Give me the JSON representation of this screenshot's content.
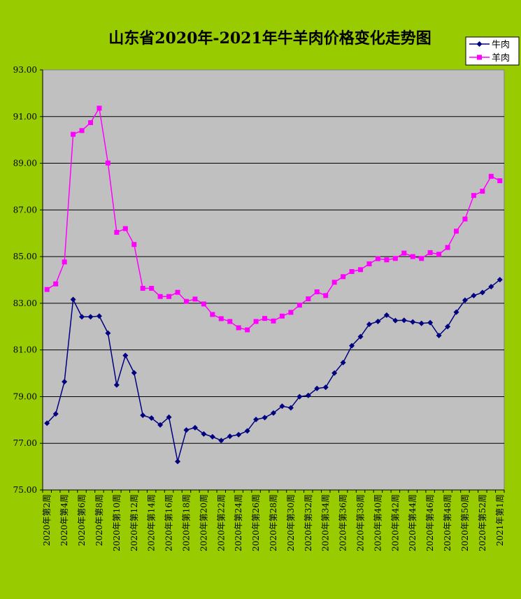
{
  "chart_data": {
    "type": "line",
    "title": "山东省2020年-2021年牛羊肉价格变化走势图",
    "xlabel": "",
    "ylabel": "",
    "ylim": [
      75,
      93
    ],
    "yticks": [
      75,
      77,
      79,
      81,
      83,
      85,
      87,
      89,
      91,
      93
    ],
    "ytick_labels": [
      "75.00",
      "77.00",
      "79.00",
      "81.00",
      "83.00",
      "85.00",
      "87.00",
      "89.00",
      "91.00",
      "93.00"
    ],
    "grid": true,
    "legend_position": "top-right",
    "x_tick_labels": [
      "2020年第2周",
      "2020年第4周",
      "2020年第6周",
      "2020年第8周",
      "2020年第10周",
      "2020年第12周",
      "2020年第14周",
      "2020年第16周",
      "2020年第18周",
      "2020年第20周",
      "2020年第22周",
      "2020年第24周",
      "2020年第26周",
      "2020年第28周",
      "2020年第30周",
      "2020年第32周",
      "2020年第34周",
      "2020年第36周",
      "2020年第38周",
      "2020年第40周",
      "2020年第42周",
      "2020年第44周",
      "2020年第46周",
      "2020年第48周",
      "2020年第50周",
      "2020年第52周",
      "2021年第1周"
    ],
    "series": [
      {
        "name": "牛肉",
        "color": "#000080",
        "marker": "diamond",
        "values": [
          77.86,
          78.26,
          79.64,
          83.16,
          82.42,
          82.42,
          82.45,
          81.72,
          79.5,
          80.76,
          80.02,
          78.2,
          78.08,
          77.79,
          78.12,
          76.22,
          77.57,
          77.67,
          77.4,
          77.28,
          77.12,
          77.3,
          77.37,
          77.53,
          78.02,
          78.1,
          78.3,
          78.59,
          78.52,
          79.0,
          79.05,
          79.35,
          79.4,
          80.01,
          80.46,
          81.18,
          81.57,
          82.1,
          82.22,
          82.49,
          82.26,
          82.27,
          82.2,
          82.14,
          82.17,
          81.62,
          82.0,
          82.62,
          83.13,
          83.33,
          83.46,
          83.71,
          84.01
        ]
      },
      {
        "name": "羊肉",
        "color": "#ff00ff",
        "marker": "square",
        "values": [
          83.59,
          83.83,
          84.77,
          90.24,
          90.4,
          90.74,
          91.36,
          89.01,
          86.04,
          86.2,
          85.52,
          83.64,
          83.64,
          83.29,
          83.29,
          83.47,
          83.08,
          83.18,
          82.97,
          82.52,
          82.34,
          82.22,
          81.95,
          81.86,
          82.22,
          82.35,
          82.24,
          82.45,
          82.61,
          82.92,
          83.19,
          83.49,
          83.33,
          83.9,
          84.14,
          84.36,
          84.44,
          84.69,
          84.91,
          84.86,
          84.92,
          85.15,
          85.0,
          84.92,
          85.17,
          85.1,
          85.39,
          86.09,
          86.61,
          87.62,
          87.8,
          88.44,
          88.25
        ]
      }
    ]
  }
}
